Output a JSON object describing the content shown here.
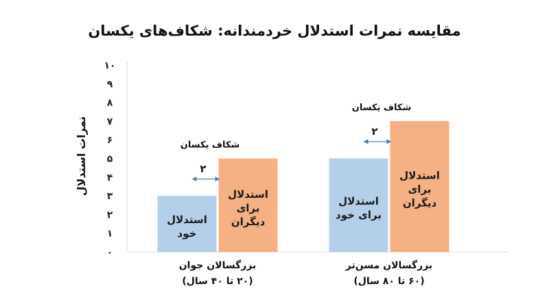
{
  "chart_data": {
    "type": "bar",
    "title": "مقایسه نمرات استدلال خردمندانه: شکاف‌های یکسان",
    "ylabel": "نمرات استدلال",
    "ylim": [
      0,
      10
    ],
    "ytick_labels": [
      "۰",
      "۱",
      "۲",
      "۳",
      "۴",
      "۵",
      "۶",
      "۷",
      "۸",
      "۹",
      "۱۰"
    ],
    "grid": false,
    "colors": {
      "self": "#b4cfe9",
      "others": "#f5b183"
    },
    "groups": [
      {
        "label_line1": "بزرگسالان جوان",
        "label_line2": "(۲۰ تا ۴۰ سال)",
        "gap_label": "شکاف یکسان",
        "gap_value": "۲",
        "bars": [
          {
            "series": "self",
            "value": 3,
            "label_lines": [
              "استدلال",
              "خود"
            ]
          },
          {
            "series": "others",
            "value": 5,
            "label_lines": [
              "استدلال",
              "برای",
              "دیگران"
            ]
          }
        ]
      },
      {
        "label_line1": "بزرگسالان مسن‌تر",
        "label_line2": "(۶۰ تا ۸۰ سال)",
        "gap_label": "شکاف یکسان",
        "gap_value": "۲",
        "bars": [
          {
            "series": "self",
            "value": 5,
            "label_lines": [
              "استدلال",
              "برای خود"
            ]
          },
          {
            "series": "others",
            "value": 7,
            "label_lines": [
              "استدلال",
              "برای",
              "دیگران"
            ]
          }
        ]
      }
    ]
  }
}
